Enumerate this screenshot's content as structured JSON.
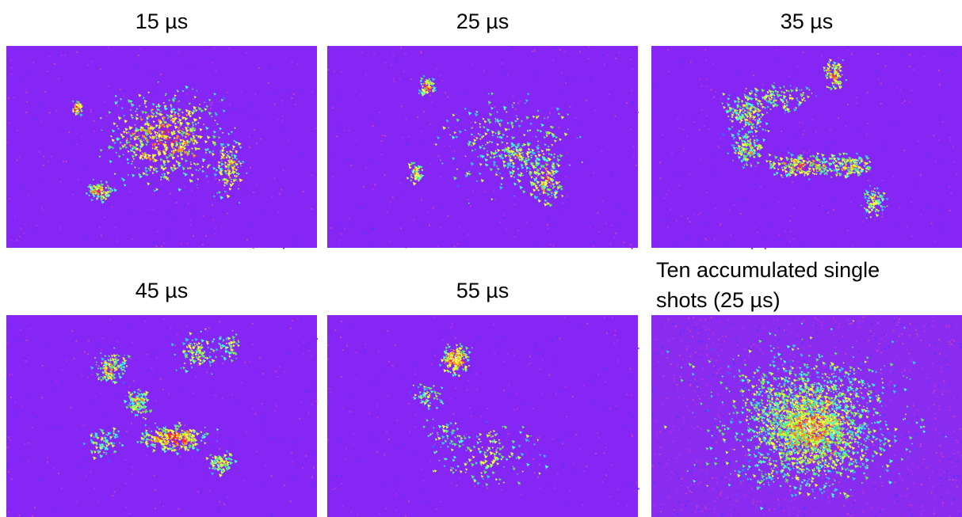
{
  "panels": [
    {
      "label": [
        "15 µs"
      ]
    },
    {
      "label": [
        "25 µs"
      ]
    },
    {
      "label": [
        "35 µs"
      ]
    },
    {
      "label": [
        "45 µs"
      ]
    },
    {
      "label": [
        "55 µs"
      ]
    },
    {
      "label": [
        "Ten accumulated single",
        "shots (25 µs)"
      ]
    }
  ]
}
